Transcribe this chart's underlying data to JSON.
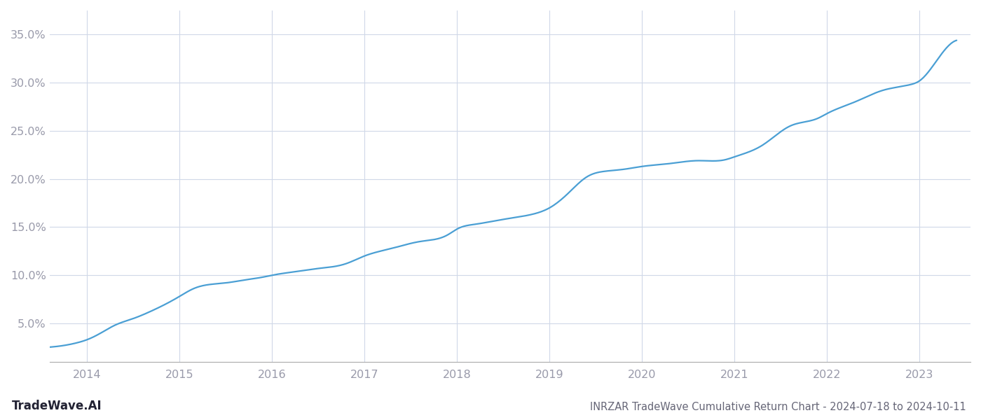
{
  "title": "INRZAR TradeWave Cumulative Return Chart - 2024-07-18 to 2024-10-11",
  "watermark": "TradeWave.AI",
  "line_color": "#4a9fd4",
  "background_color": "#ffffff",
  "grid_color": "#d0d8e8",
  "x_years": [
    2014,
    2015,
    2016,
    2017,
    2018,
    2019,
    2020,
    2021,
    2022,
    2023
  ],
  "y_ticks": [
    5.0,
    10.0,
    15.0,
    20.0,
    25.0,
    30.0,
    35.0
  ],
  "xlim": [
    2013.6,
    2023.55
  ],
  "ylim": [
    1.0,
    37.5
  ],
  "x_data": [
    2013.55,
    2013.75,
    2013.9,
    2014.0,
    2014.15,
    2014.3,
    2014.5,
    2014.7,
    2014.85,
    2015.0,
    2015.15,
    2015.3,
    2015.5,
    2015.7,
    2015.9,
    2016.0,
    2016.2,
    2016.5,
    2016.8,
    2017.0,
    2017.3,
    2017.6,
    2017.9,
    2018.0,
    2018.2,
    2018.5,
    2018.8,
    2019.0,
    2019.2,
    2019.4,
    2019.6,
    2019.8,
    2020.0,
    2020.3,
    2020.6,
    2020.9,
    2021.0,
    2021.3,
    2021.6,
    2021.9,
    2022.0,
    2022.3,
    2022.6,
    2022.9,
    2023.0,
    2023.2,
    2023.4
  ],
  "y_data": [
    2.5,
    2.7,
    3.0,
    3.3,
    4.0,
    4.8,
    5.5,
    6.3,
    7.0,
    7.8,
    8.6,
    9.0,
    9.2,
    9.5,
    9.8,
    10.0,
    10.3,
    10.7,
    11.2,
    12.0,
    12.8,
    13.5,
    14.2,
    14.8,
    15.3,
    15.8,
    16.3,
    17.0,
    18.5,
    20.2,
    20.8,
    21.0,
    21.3,
    21.6,
    21.9,
    22.0,
    22.3,
    23.5,
    25.5,
    26.3,
    26.8,
    28.0,
    29.2,
    29.8,
    30.2,
    32.5,
    34.4
  ],
  "title_fontsize": 10.5,
  "tick_fontsize": 11.5,
  "watermark_fontsize": 12,
  "line_width": 1.6,
  "tick_color": "#999aaa",
  "title_color": "#666677",
  "spine_color": "#aaaaaa"
}
